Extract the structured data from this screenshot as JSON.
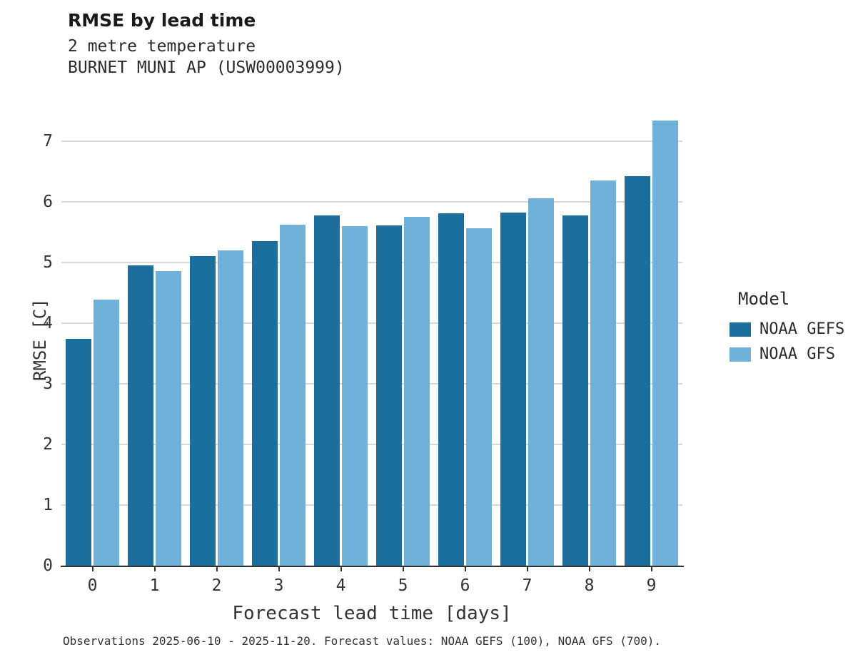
{
  "title": "RMSE by lead time",
  "subtitle_line1": "2 metre temperature",
  "subtitle_line2": "BURNET MUNI AP (USW00003999)",
  "caption": "Observations 2025-06-10 - 2025-11-20. Forecast values: NOAA GEFS (100), NOAA GFS (700).",
  "chart_data": {
    "type": "bar",
    "title": "RMSE by lead time",
    "subtitle": "2 metre temperature — BURNET MUNI AP (USW00003999)",
    "categories": [
      0,
      1,
      2,
      3,
      4,
      5,
      6,
      7,
      8,
      9
    ],
    "series": [
      {
        "name": "NOAA GEFS",
        "color": "#1c6e9d",
        "values": [
          3.74,
          4.95,
          5.1,
          5.35,
          5.77,
          5.61,
          5.81,
          5.82,
          5.77,
          6.42
        ]
      },
      {
        "name": "NOAA GFS",
        "color": "#6fb1d8",
        "values": [
          4.38,
          4.86,
          5.2,
          5.62,
          5.6,
          5.75,
          5.56,
          6.05,
          6.35,
          7.34
        ]
      }
    ],
    "xlabel": "Forecast lead time [days]",
    "ylabel": "RMSE [C]",
    "ylim": [
      0,
      7.56
    ],
    "yticks": [
      0,
      1,
      2,
      3,
      4,
      5,
      6,
      7
    ],
    "grid": "horizontal",
    "grid_color": "#d9d9d9",
    "legend_title": "Model",
    "legend_position": "right"
  }
}
